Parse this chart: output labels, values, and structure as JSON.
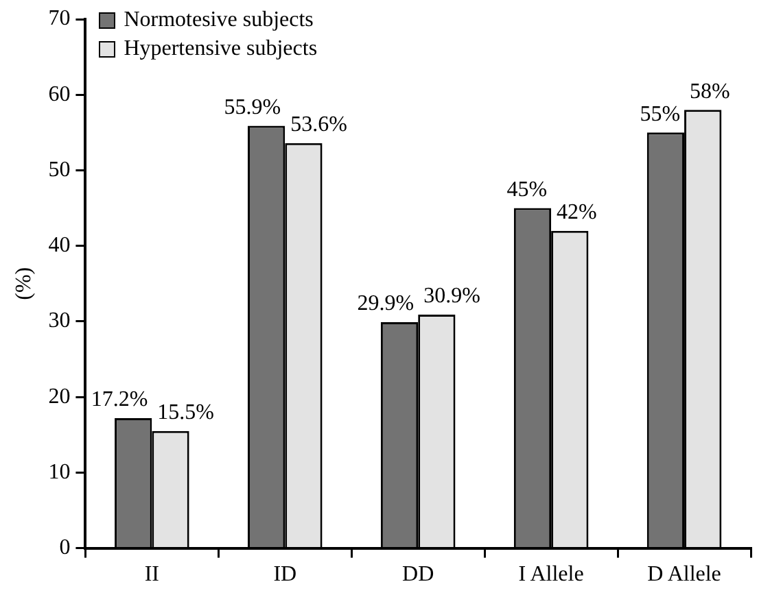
{
  "chart_data": {
    "type": "bar",
    "ylabel": "(%)",
    "categories": [
      "II",
      "ID",
      "DD",
      "I Allele",
      "D Allele"
    ],
    "series": [
      {
        "name": "Normotesive subjects",
        "color": "#737373",
        "values": [
          17.2,
          55.9,
          29.9,
          45,
          55
        ],
        "value_labels": [
          "17.2%",
          "55.9%",
          "29.9%",
          "45%",
          "55%"
        ]
      },
      {
        "name": "Hypertensive subjects",
        "color": "#e3e3e3",
        "values": [
          15.5,
          53.6,
          30.9,
          42,
          58
        ],
        "value_labels": [
          "15.5%",
          "53.6%",
          "30.9%",
          "42%",
          "58%"
        ]
      }
    ],
    "ylim": [
      0,
      70
    ],
    "yticks": [
      0,
      10,
      20,
      30,
      40,
      50,
      60,
      70
    ],
    "grid": false,
    "legend": "top left"
  }
}
